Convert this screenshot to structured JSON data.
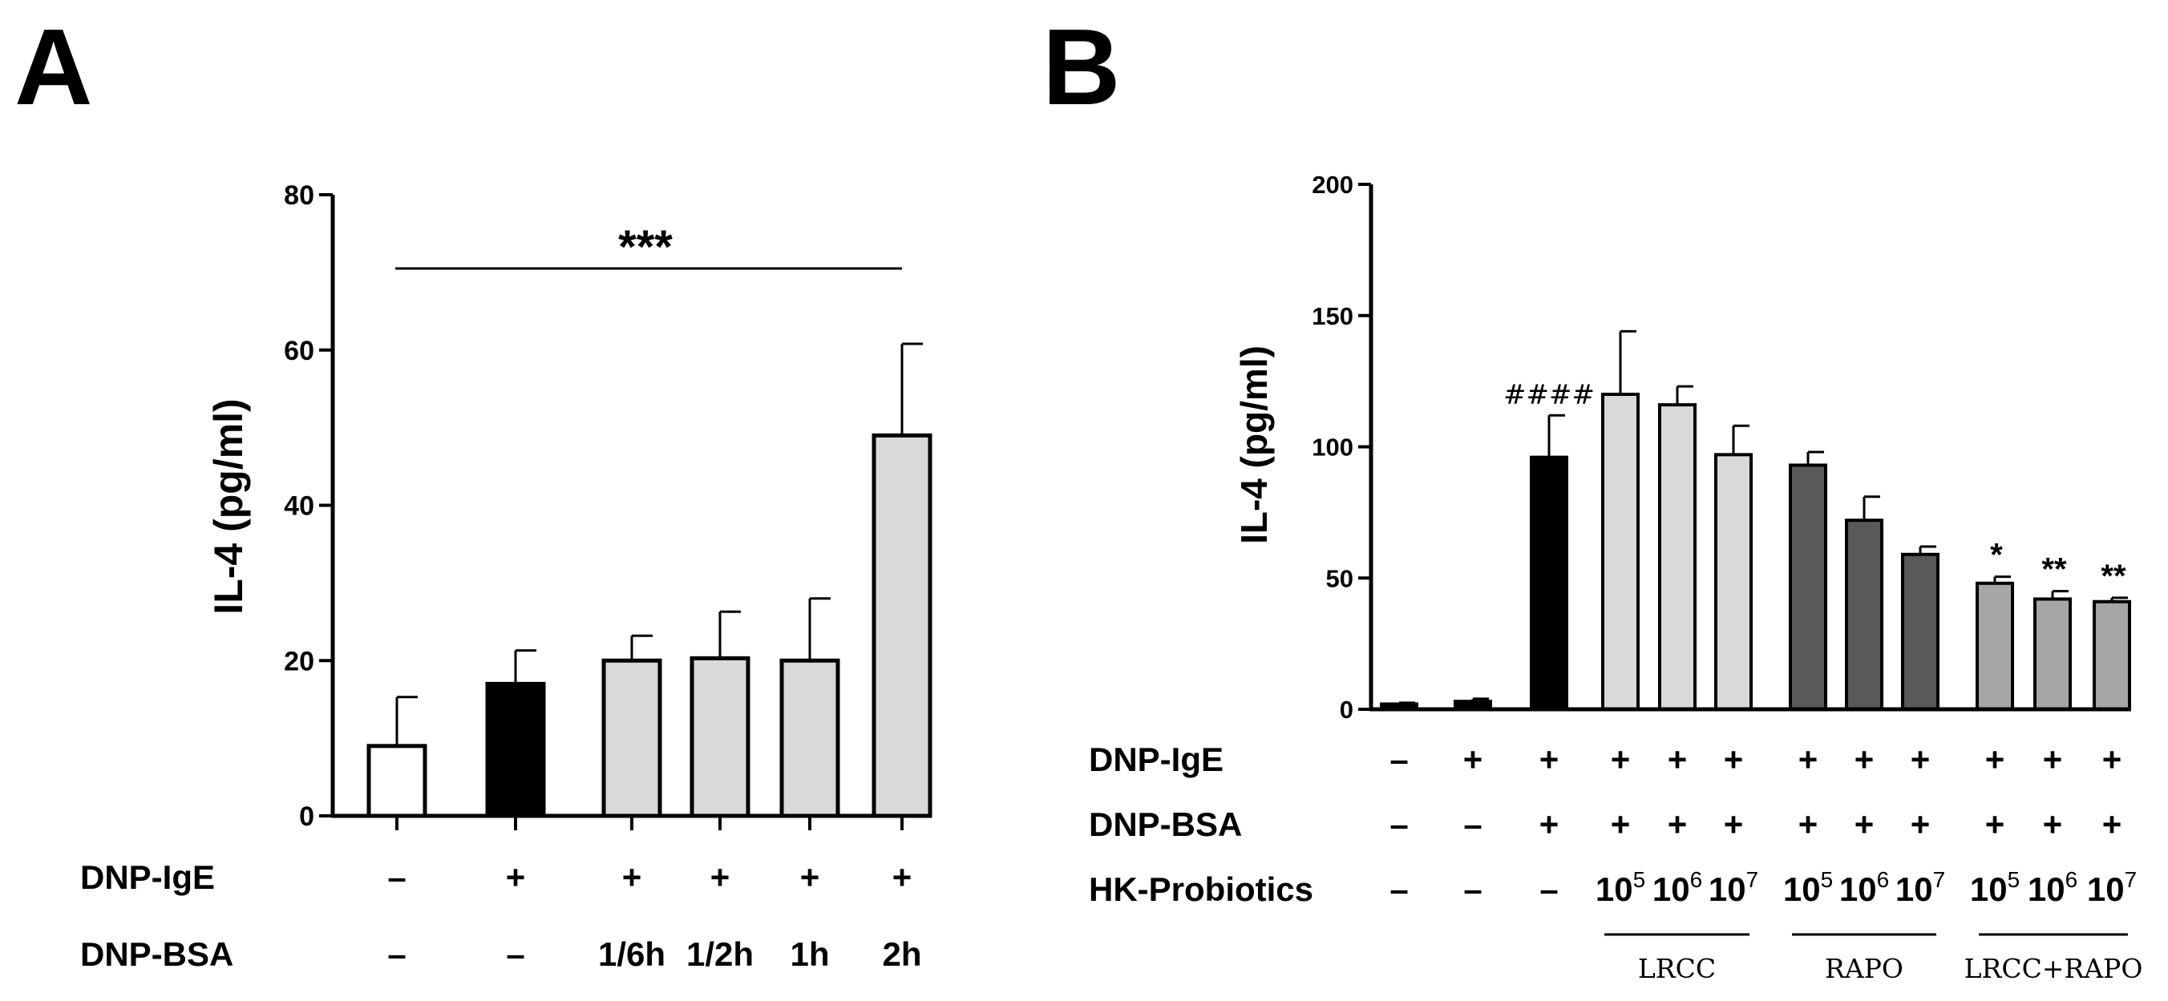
{
  "chart_data": [
    {
      "panel": "A",
      "type": "bar",
      "ylabel": "IL-4 (pg/ml)",
      "ylim": [
        0,
        80
      ],
      "yticks": [
        "0",
        "20",
        "40",
        "60",
        "80"
      ],
      "values": [
        9,
        17,
        20,
        20.3,
        20,
        49
      ],
      "errors": [
        6.3,
        4.3,
        3.2,
        6.0,
        8.0,
        11.8
      ],
      "colors": [
        "#ffffff",
        "#000000",
        "#d9d9d9",
        "#d9d9d9",
        "#d9d9d9",
        "#d9d9d9"
      ],
      "significance": "***",
      "conditions": [
        {
          "label": "DNP-IgE",
          "values": [
            "–",
            "+",
            "+",
            "+",
            "+",
            "+"
          ]
        },
        {
          "label": "DNP-BSA",
          "values": [
            "–",
            "–",
            "1/6h",
            "1/2h",
            "1h",
            "2h"
          ]
        }
      ]
    },
    {
      "panel": "B",
      "type": "bar",
      "ylabel": "IL-4 (pg/ml)",
      "ylim": [
        0,
        200
      ],
      "yticks": [
        "0",
        "50",
        "100",
        "150",
        "200"
      ],
      "values": [
        2,
        3,
        96,
        120,
        116,
        97,
        93,
        72,
        59,
        48,
        42,
        41
      ],
      "errors": [
        0.5,
        1,
        16,
        24,
        7,
        11,
        5,
        9,
        3,
        2.5,
        3,
        1.5
      ],
      "colors": [
        "#000000",
        "#000000",
        "#000000",
        "#d9d9d9",
        "#d9d9d9",
        "#d9d9d9",
        "#595959",
        "#595959",
        "#595959",
        "#a6a6a6",
        "#a6a6a6",
        "#a6a6a6"
      ],
      "annotations": [
        "",
        "",
        "####",
        "",
        "",
        "",
        "",
        "",
        "",
        "*",
        "**",
        "**"
      ],
      "conditions": [
        {
          "label": "DNP-IgE",
          "values": [
            "–",
            "+",
            "+",
            "+",
            "+",
            "+",
            "+",
            "+",
            "+",
            "+",
            "+",
            "+"
          ]
        },
        {
          "label": "DNP-BSA",
          "values": [
            "–",
            "–",
            "+",
            "+",
            "+",
            "+",
            "+",
            "+",
            "+",
            "+",
            "+",
            "+"
          ]
        },
        {
          "label": "HK-Probiotics",
          "values": [
            "–",
            "–",
            "–",
            "10",
            "10",
            "10",
            "10",
            "10",
            "10",
            "10",
            "10",
            "10"
          ],
          "exponents": [
            "",
            "",
            "",
            "5",
            "6",
            "7",
            "5",
            "6",
            "7",
            "5",
            "6",
            "7"
          ]
        }
      ],
      "groups": [
        "LRCC",
        "RAPO",
        "LRCC+RAPO"
      ]
    }
  ],
  "panels": {
    "A": "A",
    "B": "B"
  }
}
